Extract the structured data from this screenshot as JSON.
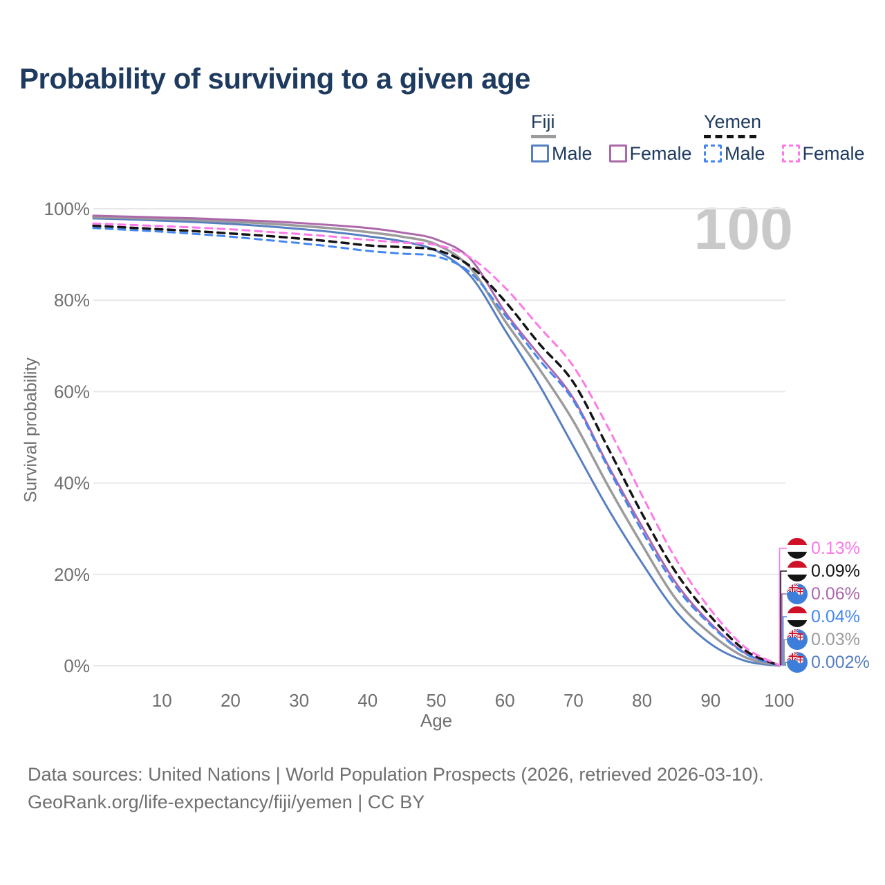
{
  "title": "Probability of surviving to a given age",
  "watermark_age": "100",
  "colors": {
    "fiji_male": "#567fc1",
    "fiji_total": "#9b9b9b",
    "fiji_female": "#ad68ab",
    "yemen_male": "#4486f1",
    "yemen_total": "#141414",
    "yemen_female": "#fd78e8",
    "title_text": "#1e3a5f",
    "axis_text": "#6f6f6f",
    "grid": "#e8e8e8",
    "watermark": "#c9c9c9"
  },
  "legend": {
    "fiji": {
      "name": "Fiji",
      "male": "Male",
      "female": "Female"
    },
    "yemen": {
      "name": "Yemen",
      "male": "Male",
      "female": "Female"
    }
  },
  "chart_data": {
    "type": "line",
    "title": "Probability of surviving to a given age",
    "xlabel": "Age",
    "ylabel": "Survival probability",
    "xlim": [
      0,
      100
    ],
    "ylim": [
      0,
      100
    ],
    "xticks": [
      10,
      20,
      30,
      40,
      50,
      60,
      70,
      80,
      90,
      100
    ],
    "yticks": [
      0,
      20,
      40,
      60,
      80,
      100
    ],
    "ytick_format": "percent",
    "grid": "horizontal",
    "legend_position": "top-right",
    "x": [
      0,
      5,
      10,
      15,
      20,
      25,
      30,
      35,
      40,
      45,
      50,
      55,
      60,
      65,
      70,
      75,
      80,
      85,
      90,
      95,
      100
    ],
    "series": [
      {
        "key": "fiji_male",
        "name": "Fiji Male",
        "country": "Fiji",
        "sex": "Male",
        "style": "solid",
        "width": 3,
        "values": [
          97.9,
          97.7,
          97.4,
          97.1,
          96.7,
          96.2,
          95.6,
          94.9,
          94.0,
          92.9,
          90.8,
          85.3,
          73.5,
          61.5,
          48.0,
          34.5,
          22.5,
          11.8,
          4.8,
          1.1,
          0.002
        ]
      },
      {
        "key": "fiji_total",
        "name": "Fiji (both sexes)",
        "country": "Fiji",
        "sex": "Both",
        "style": "solid",
        "width": 3.5,
        "values": [
          98.2,
          98.0,
          97.8,
          97.5,
          97.2,
          96.8,
          96.3,
          95.7,
          94.9,
          93.9,
          92.2,
          87.0,
          75.5,
          65.0,
          53.5,
          39.5,
          26.5,
          14.5,
          7.0,
          1.9,
          0.03
        ]
      },
      {
        "key": "fiji_female",
        "name": "Fiji Female",
        "country": "Fiji",
        "sex": "Female",
        "style": "solid",
        "width": 3,
        "values": [
          98.5,
          98.3,
          98.1,
          97.9,
          97.6,
          97.3,
          96.9,
          96.4,
          95.8,
          94.8,
          93.3,
          89.0,
          77.5,
          68.0,
          58.5,
          44.0,
          30.5,
          18.0,
          9.3,
          2.8,
          0.06
        ]
      },
      {
        "key": "yemen_male",
        "name": "Yemen Male",
        "country": "Yemen",
        "sex": "Male",
        "style": "dashed",
        "width": 3,
        "values": [
          95.8,
          95.4,
          95.0,
          94.5,
          93.9,
          93.2,
          92.5,
          91.7,
          90.8,
          90.2,
          89.6,
          86.0,
          76.8,
          67.0,
          58.0,
          43.5,
          29.5,
          17.2,
          8.9,
          2.7,
          0.04
        ]
      },
      {
        "key": "yemen_total",
        "name": "Yemen (both sexes)",
        "country": "Yemen",
        "sex": "Both",
        "style": "dashed",
        "width": 3.5,
        "values": [
          96.3,
          95.9,
          95.5,
          95.1,
          94.6,
          94.1,
          93.5,
          92.8,
          92.0,
          91.6,
          91.0,
          87.4,
          79.8,
          70.5,
          62.0,
          47.8,
          33.3,
          20.3,
          10.8,
          3.4,
          0.09
        ]
      },
      {
        "key": "yemen_female",
        "name": "Yemen Female",
        "country": "Yemen",
        "sex": "Female",
        "style": "dashed",
        "width": 3,
        "values": [
          96.8,
          96.5,
          96.2,
          95.9,
          95.5,
          95.0,
          94.5,
          93.9,
          93.2,
          92.6,
          92.1,
          89.3,
          82.8,
          74.2,
          65.5,
          52.3,
          37.3,
          23.2,
          12.3,
          4.1,
          0.13
        ]
      }
    ],
    "end_labels": [
      {
        "series": "yemen_female",
        "flag": "yemen",
        "value": "0.13%"
      },
      {
        "series": "yemen_total",
        "flag": "yemen",
        "value": "0.09%"
      },
      {
        "series": "fiji_female",
        "flag": "fiji",
        "value": "0.06%"
      },
      {
        "series": "yemen_male",
        "flag": "yemen",
        "value": "0.04%"
      },
      {
        "series": "fiji_total",
        "flag": "fiji",
        "value": "0.03%"
      },
      {
        "series": "fiji_male",
        "flag": "fiji",
        "value": "0.002%"
      }
    ],
    "age_marker": "100"
  },
  "footer": {
    "line1": "Data sources: United Nations | World Population Prospects (2026, retrieved 2026-03-10).",
    "line2": "GeoRank.org/life-expectancy/fiji/yemen | CC BY"
  }
}
